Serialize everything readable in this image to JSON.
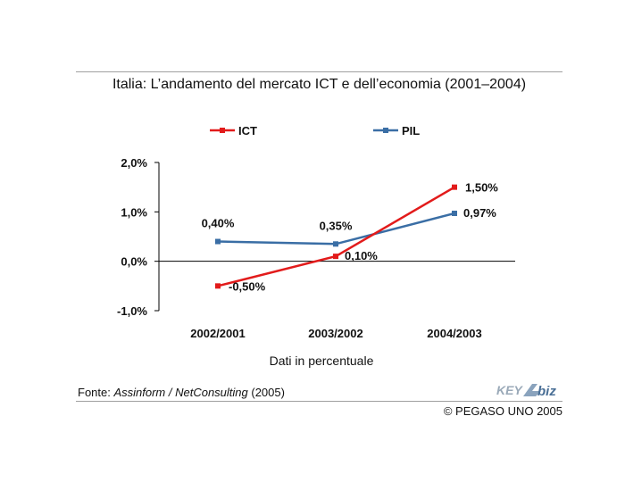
{
  "title": "Italia: L’andamento del mercato ICT e dell’economia (2001–2004)",
  "source": {
    "prefix": "Fonte: ",
    "italic": "Assinform / NetConsulting",
    "suffix": " (2005)"
  },
  "copyright": "© PEGASO UNO 2005",
  "logo": {
    "text_key": "KEY",
    "text_biz": "biz"
  },
  "colors": {
    "ict": "#e21b1b",
    "pil": "#3a6ea5",
    "axis": "#000000",
    "rule": "#a0a0a0"
  },
  "chart_data": {
    "type": "line",
    "categories": [
      "2002/2001",
      "2003/2002",
      "2004/2003"
    ],
    "series": [
      {
        "name": "ICT",
        "values": [
          -0.5,
          0.1,
          1.5
        ],
        "labels": [
          "-0,50%",
          "0,10%",
          "1,50%"
        ],
        "color": "#e21b1b"
      },
      {
        "name": "PIL",
        "values": [
          0.4,
          0.35,
          0.97
        ],
        "labels": [
          "0,40%",
          "0,35%",
          "0,97%"
        ],
        "color": "#3a6ea5"
      }
    ],
    "yticks": [
      2.0,
      1.0,
      0.0,
      -1.0
    ],
    "ytick_labels": [
      "2,0%",
      "1,0%",
      "0,0%",
      "-1,0%"
    ],
    "ylim": [
      -1.0,
      2.0
    ],
    "xlabel": "Dati in percentuale",
    "ylabel": "",
    "legend_position": "top",
    "grid": false
  }
}
